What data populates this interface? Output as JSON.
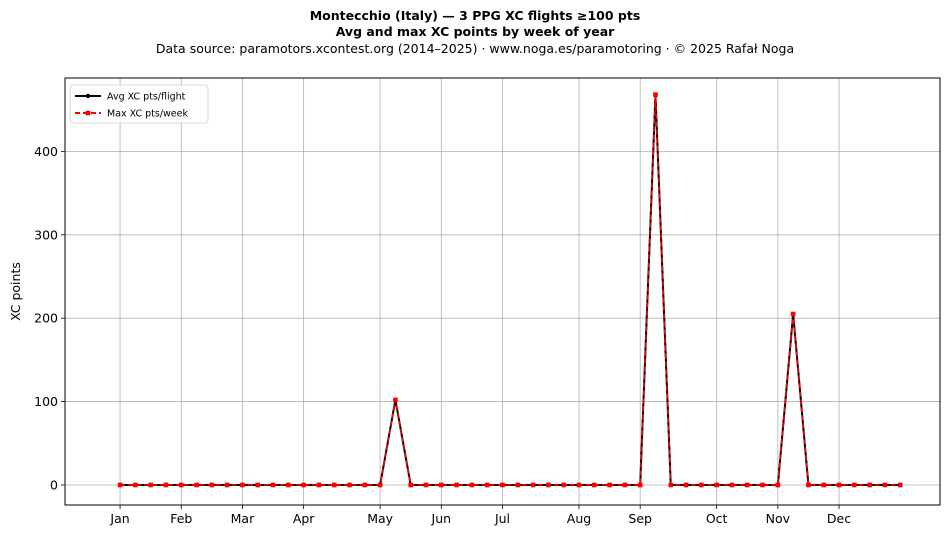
{
  "title_line1": "Montecchio (Italy)  —  3 PPG XC flights ≥100 pts",
  "title_line2": "Avg and max XC points by week of year",
  "subtitle": "Data source: paramotors.xcontest.org (2014–2025)  ·  www.noga.es/paramotoring  ·  © 2025 Rafał Noga",
  "chart_data": {
    "type": "line",
    "ylabel": "XC points",
    "xlabel": "",
    "ylim": [
      -24,
      488
    ],
    "xlim": [
      -2.6,
      54.6
    ],
    "yticks": [
      0,
      100,
      200,
      300,
      400
    ],
    "month_ticks": [
      {
        "label": "Jan",
        "week": 1
      },
      {
        "label": "Feb",
        "week": 5
      },
      {
        "label": "Mar",
        "week": 9
      },
      {
        "label": "Apr",
        "week": 13
      },
      {
        "label": "May",
        "week": 18
      },
      {
        "label": "Jun",
        "week": 22
      },
      {
        "label": "Jul",
        "week": 26
      },
      {
        "label": "Aug",
        "week": 31
      },
      {
        "label": "Sep",
        "week": 35
      },
      {
        "label": "Oct",
        "week": 40
      },
      {
        "label": "Nov",
        "week": 44
      },
      {
        "label": "Dec",
        "week": 48
      }
    ],
    "grid": true,
    "legend_position": "top-left",
    "x": [
      1,
      2,
      3,
      4,
      5,
      6,
      7,
      8,
      9,
      10,
      11,
      12,
      13,
      14,
      15,
      16,
      17,
      18,
      19,
      20,
      21,
      22,
      23,
      24,
      25,
      26,
      27,
      28,
      29,
      30,
      31,
      32,
      33,
      34,
      35,
      36,
      37,
      38,
      39,
      40,
      41,
      42,
      43,
      44,
      45,
      46,
      47,
      48,
      49,
      50,
      51,
      52
    ],
    "series": [
      {
        "name": "Avg XC pts/flight",
        "color": "#000000",
        "style": "solid",
        "marker": "circle",
        "values": [
          0,
          0,
          0,
          0,
          0,
          0,
          0,
          0,
          0,
          0,
          0,
          0,
          0,
          0,
          0,
          0,
          0,
          0,
          102,
          0,
          0,
          0,
          0,
          0,
          0,
          0,
          0,
          0,
          0,
          0,
          0,
          0,
          0,
          0,
          0,
          468,
          0,
          0,
          0,
          0,
          0,
          0,
          0,
          0,
          205,
          0,
          0,
          0,
          0,
          0,
          0,
          0
        ]
      },
      {
        "name": "Max XC pts/week",
        "color": "#ff0000",
        "style": "dashed",
        "marker": "square",
        "values": [
          0,
          0,
          0,
          0,
          0,
          0,
          0,
          0,
          0,
          0,
          0,
          0,
          0,
          0,
          0,
          0,
          0,
          0,
          102,
          0,
          0,
          0,
          0,
          0,
          0,
          0,
          0,
          0,
          0,
          0,
          0,
          0,
          0,
          0,
          0,
          468,
          0,
          0,
          0,
          0,
          0,
          0,
          0,
          0,
          205,
          0,
          0,
          0,
          0,
          0,
          0,
          0
        ]
      }
    ]
  }
}
